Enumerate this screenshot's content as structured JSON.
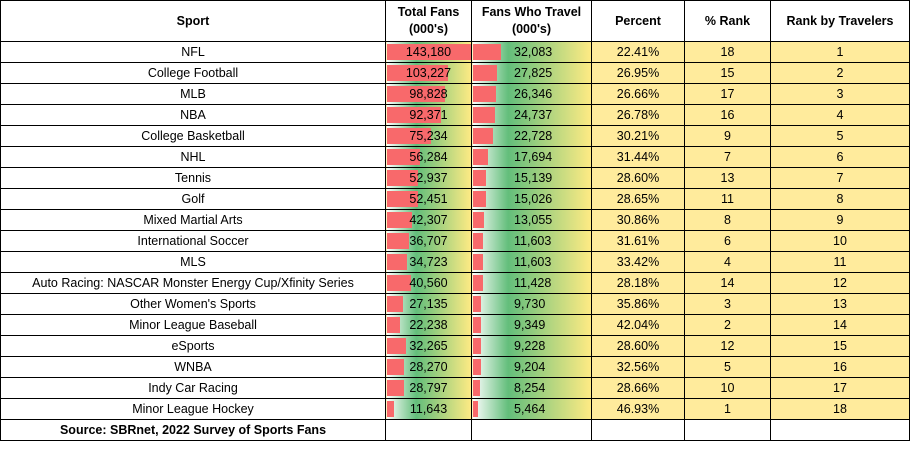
{
  "headers": {
    "sport": "Sport",
    "total_fans": "Total Fans (000's)",
    "fans_who_travel": "Fans Who Travel (000's)",
    "percent": "Percent",
    "pct_rank": "% Rank",
    "rank_by_travelers": "Rank by Travelers"
  },
  "rows": [
    {
      "sport": "NFL",
      "total_fans": "143,180",
      "fans_who_travel": "32,083",
      "percent": "22.41%",
      "pct_rank": "18",
      "rank_by_travelers": "1"
    },
    {
      "sport": "College Football",
      "total_fans": "103,227",
      "fans_who_travel": "27,825",
      "percent": "26.95%",
      "pct_rank": "15",
      "rank_by_travelers": "2"
    },
    {
      "sport": "MLB",
      "total_fans": "98,828",
      "fans_who_travel": "26,346",
      "percent": "26.66%",
      "pct_rank": "17",
      "rank_by_travelers": "3"
    },
    {
      "sport": "NBA",
      "total_fans": "92,371",
      "fans_who_travel": "24,737",
      "percent": "26.78%",
      "pct_rank": "16",
      "rank_by_travelers": "4"
    },
    {
      "sport": "College Basketball",
      "total_fans": "75,234",
      "fans_who_travel": "22,728",
      "percent": "30.21%",
      "pct_rank": "9",
      "rank_by_travelers": "5"
    },
    {
      "sport": "NHL",
      "total_fans": "56,284",
      "fans_who_travel": "17,694",
      "percent": "31.44%",
      "pct_rank": "7",
      "rank_by_travelers": "6"
    },
    {
      "sport": "Tennis",
      "total_fans": "52,937",
      "fans_who_travel": "15,139",
      "percent": "28.60%",
      "pct_rank": "13",
      "rank_by_travelers": "7"
    },
    {
      "sport": "Golf",
      "total_fans": "52,451",
      "fans_who_travel": "15,026",
      "percent": "28.65%",
      "pct_rank": "11",
      "rank_by_travelers": "8"
    },
    {
      "sport": "Mixed Martial Arts",
      "total_fans": "42,307",
      "fans_who_travel": "13,055",
      "percent": "30.86%",
      "pct_rank": "8",
      "rank_by_travelers": "9"
    },
    {
      "sport": "International Soccer",
      "total_fans": "36,707",
      "fans_who_travel": "11,603",
      "percent": "31.61%",
      "pct_rank": "6",
      "rank_by_travelers": "10"
    },
    {
      "sport": "MLS",
      "total_fans": "34,723",
      "fans_who_travel": "11,603",
      "percent": "33.42%",
      "pct_rank": "4",
      "rank_by_travelers": "11"
    },
    {
      "sport": "Auto Racing: NASCAR Monster Energy Cup/Xfinity Series",
      "total_fans": "40,560",
      "fans_who_travel": "11,428",
      "percent": "28.18%",
      "pct_rank": "14",
      "rank_by_travelers": "12"
    },
    {
      "sport": "Other Women's Sports",
      "total_fans": "27,135",
      "fans_who_travel": "9,730",
      "percent": "35.86%",
      "pct_rank": "3",
      "rank_by_travelers": "13"
    },
    {
      "sport": "Minor League Baseball",
      "total_fans": "22,238",
      "fans_who_travel": "9,349",
      "percent": "42.04%",
      "pct_rank": "2",
      "rank_by_travelers": "14"
    },
    {
      "sport": "eSports",
      "total_fans": "32,265",
      "fans_who_travel": "9,228",
      "percent": "28.60%",
      "pct_rank": "12",
      "rank_by_travelers": "15"
    },
    {
      "sport": "WNBA",
      "total_fans": "28,270",
      "fans_who_travel": "9,204",
      "percent": "32.56%",
      "pct_rank": "5",
      "rank_by_travelers": "16"
    },
    {
      "sport": "Indy Car Racing",
      "total_fans": "28,797",
      "fans_who_travel": "8,254",
      "percent": "28.66%",
      "pct_rank": "10",
      "rank_by_travelers": "17"
    },
    {
      "sport": "Minor League Hockey",
      "total_fans": "11,643",
      "fans_who_travel": "5,464",
      "percent": "46.93%",
      "pct_rank": "1",
      "rank_by_travelers": "18"
    }
  ],
  "source": "Source:  SBRnet, 2022 Survey of Sports Fans",
  "colors": {
    "bar_red": "#f8696b",
    "gradient_green": "#63be7b",
    "gradient_yellow": "#ffeb84",
    "yellow_fill": "#ffeb9c",
    "border": "#000000"
  },
  "chart_data": {
    "type": "table",
    "columns": [
      "Sport",
      "Total Fans (000's)",
      "Fans Who Travel (000's)",
      "Percent",
      "% Rank",
      "Rank by Travelers"
    ],
    "categories": [
      "NFL",
      "College Football",
      "MLB",
      "NBA",
      "College Basketball",
      "NHL",
      "Tennis",
      "Golf",
      "Mixed Martial Arts",
      "International Soccer",
      "MLS",
      "Auto Racing: NASCAR Monster Energy Cup/Xfinity Series",
      "Other Women's Sports",
      "Minor League Baseball",
      "eSports",
      "WNBA",
      "Indy Car Racing",
      "Minor League Hockey"
    ],
    "series": [
      {
        "name": "Total Fans (000's)",
        "values": [
          143180,
          103227,
          98828,
          92371,
          75234,
          56284,
          52937,
          52451,
          42307,
          36707,
          34723,
          40560,
          27135,
          22238,
          32265,
          28270,
          28797,
          11643
        ]
      },
      {
        "name": "Fans Who Travel (000's)",
        "values": [
          32083,
          27825,
          26346,
          24737,
          22728,
          17694,
          15139,
          15026,
          13055,
          11603,
          11603,
          11428,
          9730,
          9349,
          9228,
          9204,
          8254,
          5464
        ]
      },
      {
        "name": "Percent",
        "values": [
          22.41,
          26.95,
          26.66,
          26.78,
          30.21,
          31.44,
          28.6,
          28.65,
          30.86,
          31.61,
          33.42,
          28.18,
          35.86,
          42.04,
          28.6,
          32.56,
          28.66,
          46.93
        ]
      },
      {
        "name": "% Rank",
        "values": [
          18,
          15,
          17,
          16,
          9,
          7,
          13,
          11,
          8,
          6,
          4,
          14,
          3,
          2,
          12,
          5,
          10,
          1
        ]
      },
      {
        "name": "Rank by Travelers",
        "values": [
          1,
          2,
          3,
          4,
          5,
          6,
          7,
          8,
          9,
          10,
          11,
          12,
          13,
          14,
          15,
          16,
          17,
          18
        ]
      }
    ]
  }
}
